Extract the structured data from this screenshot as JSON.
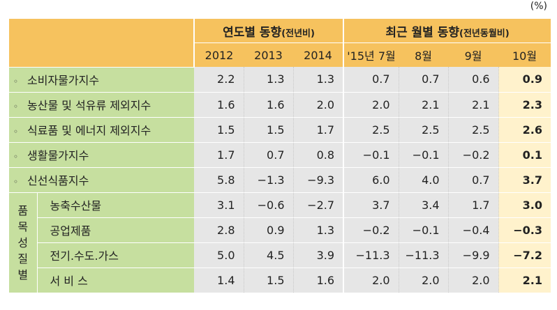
{
  "unit": "(%)",
  "header": {
    "yearly_title": "연도별 동향",
    "yearly_sub": "(전년비)",
    "monthly_title": "최근 월별 동향",
    "monthly_sub": "(전년동월비)",
    "columns": [
      "2012",
      "2013",
      "2014",
      "'15년 7월",
      "8월",
      "9월",
      "10월"
    ]
  },
  "rows": [
    {
      "label": "소비자물가지수",
      "values": [
        "2.2",
        "1.3",
        "1.3",
        "0.7",
        "0.7",
        "0.6",
        "0.9"
      ]
    },
    {
      "label": "농산물 및 석유류 제외지수",
      "values": [
        "1.6",
        "1.6",
        "2.0",
        "2.0",
        "2.1",
        "2.1",
        "2.3"
      ]
    },
    {
      "label": "식료품 및 에너지 제외지수",
      "values": [
        "1.5",
        "1.5",
        "1.7",
        "2.5",
        "2.5",
        "2.5",
        "2.6"
      ]
    },
    {
      "label": "생활물가지수",
      "values": [
        "1.7",
        "0.7",
        "0.8",
        "−0.1",
        "−0.1",
        "−0.2",
        "0.1"
      ]
    },
    {
      "label": "신선식품지수",
      "values": [
        "5.8",
        "−1.3",
        "−9.3",
        "6.0",
        "4.0",
        "0.7",
        "3.7"
      ]
    }
  ],
  "group": {
    "label_chars": [
      "품",
      "목",
      "성",
      "질",
      "별"
    ],
    "rows": [
      {
        "label": "농축수산물",
        "values": [
          "3.1",
          "−0.6",
          "−2.7",
          "3.7",
          "3.4",
          "1.7",
          "3.0"
        ]
      },
      {
        "label": "공업제품",
        "values": [
          "2.8",
          "0.9",
          "1.3",
          "−0.2",
          "−0.1",
          "−0.4",
          "−0.3"
        ]
      },
      {
        "label": "전기.수도.가스",
        "values": [
          "5.0",
          "4.5",
          "3.9",
          "−11.3",
          "−11.3",
          "−9.9",
          "−7.2"
        ]
      },
      {
        "label": "서 비 스",
        "values": [
          "1.4",
          "1.5",
          "1.6",
          "2.0",
          "2.0",
          "2.0",
          "2.1"
        ]
      }
    ]
  }
}
